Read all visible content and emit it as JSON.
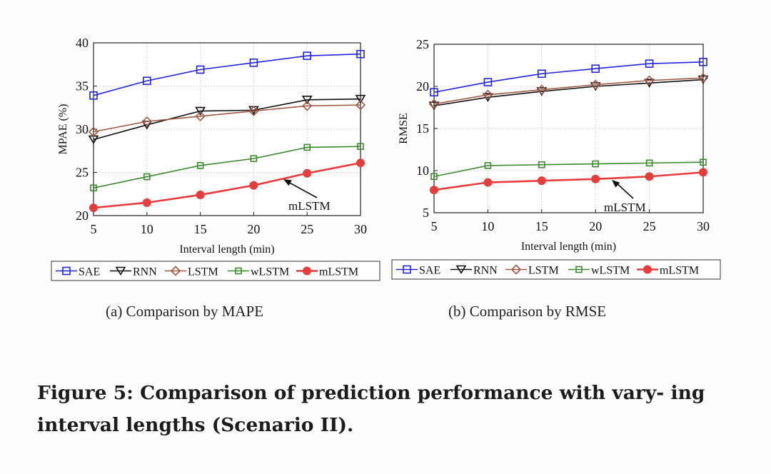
{
  "figure_caption": "Figure 5: Comparison of prediction performance with vary- ing interval lengths (Scenario II).",
  "subcaptions": {
    "a": "(a)  Comparison by MAPE",
    "b": "(b)  Comparison by RMSE"
  },
  "chart_data": [
    {
      "type": "line",
      "ylabel": "MPAE (%)",
      "xlabel": "Interval length (min)",
      "x": [
        5,
        10,
        15,
        20,
        25,
        30
      ],
      "xlim": [
        5,
        30
      ],
      "ylim": [
        20,
        40
      ],
      "yticks": [
        20,
        25,
        30,
        35,
        40
      ],
      "grid": true,
      "legend_position": "below",
      "annotation": "mLSTM",
      "series": [
        {
          "name": "SAE",
          "color": "#2323e0",
          "marker": "square",
          "values": [
            33.9,
            35.6,
            36.9,
            37.7,
            38.5,
            38.7
          ]
        },
        {
          "name": "RNN",
          "color": "#111111",
          "marker": "triangle-down",
          "values": [
            28.8,
            30.5,
            32.1,
            32.2,
            33.4,
            33.5
          ]
        },
        {
          "name": "LSTM",
          "color": "#9e5a44",
          "marker": "diamond",
          "values": [
            29.7,
            30.9,
            31.5,
            32.1,
            32.7,
            32.8
          ]
        },
        {
          "name": "wLSTM",
          "color": "#3b8a2e",
          "marker": "small-square",
          "values": [
            23.2,
            24.5,
            25.8,
            26.6,
            27.9,
            28.0
          ]
        },
        {
          "name": "mLSTM",
          "color": "#e63c3c",
          "marker": "circle",
          "values": [
            20.9,
            21.5,
            22.4,
            23.5,
            24.9,
            26.1
          ]
        }
      ]
    },
    {
      "type": "line",
      "ylabel": "RMSE",
      "xlabel": "Interval length (min)",
      "x": [
        5,
        10,
        15,
        20,
        25,
        30
      ],
      "xlim": [
        5,
        30
      ],
      "ylim": [
        5,
        25
      ],
      "yticks": [
        5,
        10,
        15,
        20,
        25
      ],
      "grid": true,
      "legend_position": "below",
      "annotation": "mLSTM",
      "series": [
        {
          "name": "SAE",
          "color": "#2323e0",
          "marker": "square",
          "values": [
            19.3,
            20.5,
            21.5,
            22.1,
            22.7,
            22.9
          ]
        },
        {
          "name": "RNN",
          "color": "#111111",
          "marker": "triangle-down",
          "values": [
            17.7,
            18.7,
            19.4,
            20.0,
            20.4,
            20.8
          ]
        },
        {
          "name": "LSTM",
          "color": "#9e5a44",
          "marker": "diamond",
          "values": [
            17.9,
            19.0,
            19.6,
            20.2,
            20.7,
            21.0
          ]
        },
        {
          "name": "wLSTM",
          "color": "#3b8a2e",
          "marker": "small-square",
          "values": [
            9.3,
            10.6,
            10.7,
            10.8,
            10.9,
            11.0
          ]
        },
        {
          "name": "mLSTM",
          "color": "#e63c3c",
          "marker": "circle",
          "values": [
            7.7,
            8.6,
            8.8,
            9.0,
            9.3,
            9.8
          ]
        }
      ]
    }
  ]
}
